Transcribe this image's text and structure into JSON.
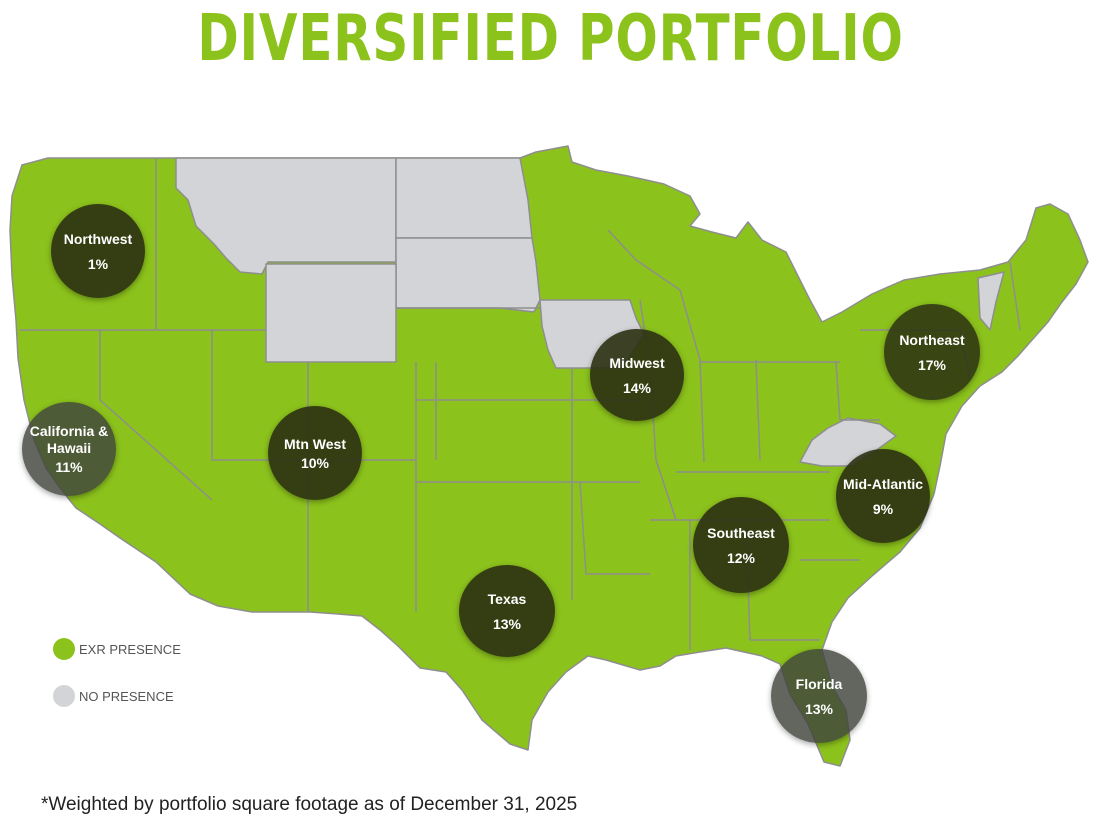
{
  "title": "DIVERSIFIED PORTFOLIO",
  "colors": {
    "presence": "#8cc21c",
    "no_presence": "#d3d4d8",
    "border": "#8e8e8e",
    "bubble": "#333a17"
  },
  "regions": [
    {
      "id": "northwest",
      "name": "Northwest",
      "pct": "1%"
    },
    {
      "id": "california-hawaii",
      "name": "California &\nHawaii",
      "pct": "11%"
    },
    {
      "id": "mtn-west",
      "name": "Mtn West",
      "pct": "10%"
    },
    {
      "id": "texas",
      "name": "Texas",
      "pct": "13%"
    },
    {
      "id": "midwest",
      "name": "Midwest",
      "pct": "14%"
    },
    {
      "id": "southeast",
      "name": "Southeast",
      "pct": "12%"
    },
    {
      "id": "northeast",
      "name": "Northeast",
      "pct": "17%"
    },
    {
      "id": "mid-atlantic",
      "name": "Mid-Atlantic",
      "pct": "9%"
    },
    {
      "id": "florida",
      "name": "Florida",
      "pct": "13%"
    }
  ],
  "legend": {
    "presence_label": "EXR PRESENCE",
    "no_presence_label": "NO PRESENCE"
  },
  "footnote": "*Weighted by portfolio square footage as of December 31, 2025"
}
